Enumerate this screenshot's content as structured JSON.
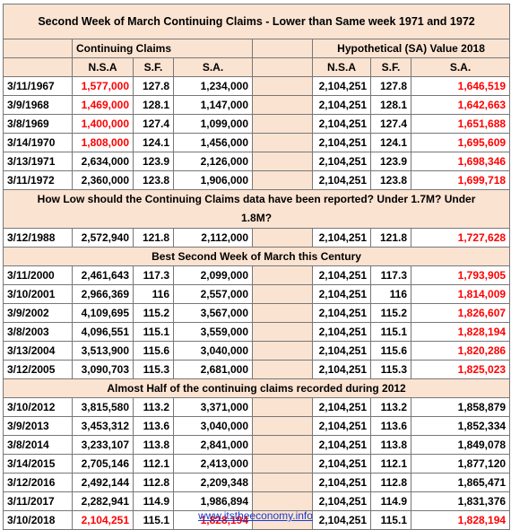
{
  "title": "Second Week of March Continuing Claims - Lower than Same week 1971 and 1972",
  "header": {
    "group_left": "Continuing Claims",
    "group_right": "Hypothetical (SA) Value 2018",
    "columns_left": [
      "N.S.A",
      "S.F.",
      "S.A."
    ],
    "columns_right": [
      "N.S.A",
      "S.F.",
      "S.A."
    ]
  },
  "rows": [
    {
      "cells": [
        "3/11/1967",
        {
          "text": "1,577,000",
          "color": "#ff0000"
        },
        "127.8",
        "1,234,000",
        "2,104,251",
        "127.8",
        {
          "text": "1,646,519",
          "color": "#ff0000"
        }
      ]
    },
    {
      "cells": [
        "3/9/1968",
        {
          "text": "1,469,000",
          "color": "#ff0000"
        },
        "128.1",
        "1,147,000",
        "2,104,251",
        "128.1",
        {
          "text": "1,642,663",
          "color": "#ff0000"
        }
      ]
    },
    {
      "cells": [
        "3/8/1969",
        {
          "text": "1,400,000",
          "color": "#ff0000"
        },
        "127.4",
        "1,099,000",
        "2,104,251",
        "127.4",
        {
          "text": "1,651,688",
          "color": "#ff0000"
        }
      ]
    },
    {
      "cells": [
        "3/14/1970",
        {
          "text": "1,808,000",
          "color": "#ff0000"
        },
        "124.1",
        "1,456,000",
        "2,104,251",
        "124.1",
        {
          "text": "1,695,609",
          "color": "#ff0000"
        }
      ]
    },
    {
      "cells": [
        "3/13/1971",
        "2,634,000",
        "123.9",
        "2,126,000",
        "2,104,251",
        "123.9",
        {
          "text": "1,698,346",
          "color": "#ff0000"
        }
      ]
    },
    {
      "cells": [
        "3/11/1972",
        "2,360,000",
        "123.8",
        "1,906,000",
        "2,104,251",
        "123.8",
        {
          "text": "1,699,718",
          "color": "#ff0000"
        }
      ]
    },
    {
      "heading": "How Low should the Continuing Claims data have been reported? Under 1.7M? Under 1.8M?"
    },
    {
      "cells": [
        "3/12/1988",
        "2,572,940",
        "121.8",
        "2,112,000",
        "2,104,251",
        "121.8",
        {
          "text": "1,727,628",
          "color": "#ff0000"
        }
      ]
    },
    {
      "heading": "Best Second Week of March this Century"
    },
    {
      "cells": [
        "3/11/2000",
        "2,461,643",
        "117.3",
        "2,099,000",
        "2,104,251",
        "117.3",
        {
          "text": "1,793,905",
          "color": "#ff0000"
        }
      ]
    },
    {
      "cells": [
        "3/10/2001",
        "2,966,369",
        "116",
        "2,557,000",
        "2,104,251",
        "116",
        {
          "text": "1,814,009",
          "color": "#ff0000"
        }
      ]
    },
    {
      "cells": [
        "3/9/2002",
        "4,109,695",
        "115.2",
        "3,567,000",
        "2,104,251",
        "115.2",
        {
          "text": "1,826,607",
          "color": "#ff0000"
        }
      ]
    },
    {
      "cells": [
        "3/8/2003",
        "4,096,551",
        "115.1",
        "3,559,000",
        "2,104,251",
        "115.1",
        {
          "text": "1,828,194",
          "color": "#ff0000"
        }
      ]
    },
    {
      "cells": [
        "3/13/2004",
        "3,513,900",
        "115.6",
        "3,040,000",
        "2,104,251",
        "115.6",
        {
          "text": "1,820,286",
          "color": "#ff0000"
        }
      ]
    },
    {
      "cells": [
        "3/12/2005",
        "3,090,703",
        "115.3",
        "2,681,000",
        "2,104,251",
        "115.3",
        {
          "text": "1,825,023",
          "color": "#ff0000"
        }
      ]
    },
    {
      "heading": "Almost Half of the continuing claims recorded during 2012"
    },
    {
      "cells": [
        "3/10/2012",
        "3,815,580",
        "113.2",
        "3,371,000",
        "2,104,251",
        "113.2",
        "1,858,879"
      ]
    },
    {
      "cells": [
        "3/9/2013",
        "3,453,312",
        "113.6",
        "3,040,000",
        "2,104,251",
        "113.6",
        "1,852,334"
      ]
    },
    {
      "cells": [
        "3/8/2014",
        "3,233,107",
        "113.8",
        "2,841,000",
        "2,104,251",
        "113.8",
        "1,849,078"
      ]
    },
    {
      "cells": [
        "3/14/2015",
        "2,705,146",
        "112.1",
        "2,413,000",
        "2,104,251",
        "112.1",
        "1,877,120"
      ]
    },
    {
      "cells": [
        "3/12/2016",
        "2,492,144",
        "112.8",
        "2,209,348",
        "2,104,251",
        "112.8",
        "1,865,471"
      ]
    },
    {
      "cells": [
        "3/11/2017",
        "2,282,941",
        "114.9",
        "1,986,894",
        "2,104,251",
        "114.9",
        "1,831,376"
      ]
    },
    {
      "cells": [
        "3/10/2018",
        {
          "text": "2,104,251",
          "color": "#ff0000"
        },
        "115.1",
        {
          "text": "1,828,194",
          "color": "#ff0000"
        },
        "2,104,251",
        "115.1",
        {
          "text": "1,828,194",
          "color": "#ff0000"
        }
      ]
    }
  ],
  "footer": {
    "link": "www.itstheeconomy.info"
  }
}
